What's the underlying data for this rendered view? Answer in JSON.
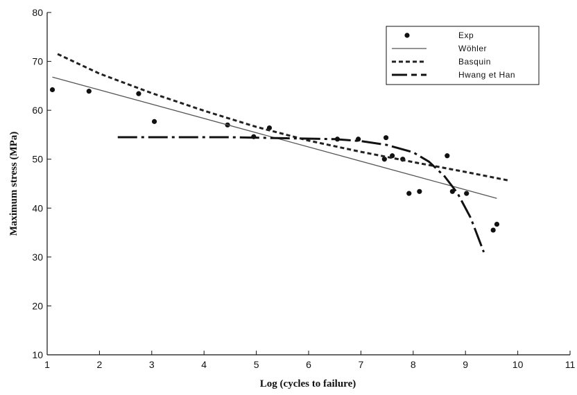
{
  "chart_data": {
    "type": "scatter",
    "xlabel": "Log (cycles to failure)",
    "ylabel": "Maximum stress    (MPa)",
    "xlim": [
      1,
      11
    ],
    "ylim": [
      10,
      80
    ],
    "xticks": [
      1,
      2,
      3,
      4,
      5,
      6,
      7,
      8,
      9,
      10,
      11
    ],
    "yticks": [
      10,
      20,
      30,
      40,
      50,
      60,
      70,
      80
    ],
    "grid": false,
    "legend_position": "top-right",
    "series": [
      {
        "name": "Exp",
        "style": "markers",
        "color": "#111111",
        "points": [
          [
            1.1,
            64.2
          ],
          [
            1.8,
            63.9
          ],
          [
            2.75,
            63.4
          ],
          [
            3.05,
            57.7
          ],
          [
            4.45,
            57.0
          ],
          [
            4.95,
            54.6
          ],
          [
            5.25,
            56.4
          ],
          [
            6.55,
            54.1
          ],
          [
            6.95,
            54.1
          ],
          [
            7.45,
            50.0
          ],
          [
            7.48,
            54.4
          ],
          [
            7.6,
            50.7
          ],
          [
            7.8,
            50.0
          ],
          [
            7.92,
            43.0
          ],
          [
            8.12,
            43.4
          ],
          [
            8.65,
            50.7
          ],
          [
            8.75,
            43.4
          ],
          [
            9.02,
            43.0
          ],
          [
            9.53,
            35.5
          ],
          [
            9.6,
            36.7
          ]
        ]
      },
      {
        "name": "Wöhler",
        "style": "solid",
        "color": "#555555",
        "points": [
          [
            1.1,
            66.8
          ],
          [
            9.6,
            42.0
          ]
        ]
      },
      {
        "name": "Basquin",
        "style": "dashed",
        "color": "#222222",
        "points": [
          [
            1.2,
            71.5
          ],
          [
            2,
            67.5
          ],
          [
            3,
            63.5
          ],
          [
            4,
            59.9
          ],
          [
            5,
            56.6
          ],
          [
            6,
            53.8
          ],
          [
            7,
            51.5
          ],
          [
            8,
            49.4
          ],
          [
            9,
            47.4
          ],
          [
            9.85,
            45.6
          ]
        ]
      },
      {
        "name": "Hwang et Han",
        "style": "dash-dot",
        "color": "#111111",
        "points": [
          [
            2.35,
            54.5
          ],
          [
            3.5,
            54.5
          ],
          [
            4.5,
            54.5
          ],
          [
            5.5,
            54.3
          ],
          [
            6.5,
            54.1
          ],
          [
            7.0,
            53.7
          ],
          [
            7.5,
            52.9
          ],
          [
            8.0,
            51.4
          ],
          [
            8.3,
            49.5
          ],
          [
            8.6,
            46.5
          ],
          [
            8.85,
            43.0
          ],
          [
            9.1,
            38.0
          ],
          [
            9.35,
            31.0
          ]
        ]
      }
    ]
  }
}
